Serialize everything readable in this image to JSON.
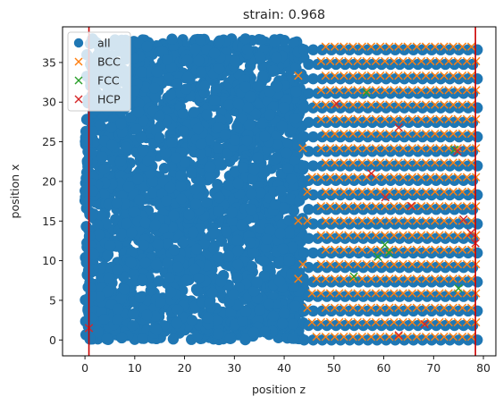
{
  "chart_data": {
    "type": "scatter",
    "title": "strain: 0.968",
    "xlabel": "position z",
    "ylabel": "position x",
    "xlim": [
      -4.5,
      82.5
    ],
    "ylim": [
      -2,
      39.5
    ],
    "xticks": [
      0,
      10,
      20,
      30,
      40,
      50,
      60,
      70,
      80
    ],
    "yticks": [
      0,
      5,
      10,
      15,
      20,
      25,
      30,
      35
    ],
    "grid": false,
    "legend_position": "top-left",
    "vlines": [
      {
        "x": 0.8,
        "color": "#cc0000"
      },
      {
        "x": 78.4,
        "color": "#cc0000"
      }
    ],
    "series": [
      {
        "name": "all",
        "marker": "circle",
        "color": "#1f77b4",
        "lattice": {
          "amorphous_x_range": [
            0,
            44
          ],
          "crystal_x_range": [
            44,
            79
          ],
          "y_range": [
            0,
            38
          ],
          "crystal_x_spacing": 1.83,
          "crystal_y_spacing": 1.83
        }
      },
      {
        "name": "BCC",
        "marker": "x",
        "color": "#ff7f0e",
        "lattice": {
          "x_range": [
            41,
            79
          ],
          "y_range": [
            0,
            37
          ],
          "x_spacing": 1.83,
          "y_spacing": 1.83
        }
      },
      {
        "name": "FCC",
        "marker": "x",
        "color": "#2ca02c",
        "points": [
          [
            56.5,
            31.2
          ],
          [
            60.2,
            12.0
          ],
          [
            58.8,
            10.5
          ],
          [
            54.0,
            8.0
          ],
          [
            75.0,
            6.5
          ],
          [
            74.2,
            24.0
          ],
          [
            61.0,
            11.0
          ]
        ]
      },
      {
        "name": "HCP",
        "marker": "x",
        "color": "#d62728",
        "points": [
          [
            0.8,
            1.5
          ],
          [
            50.5,
            29.8
          ],
          [
            63.0,
            26.8
          ],
          [
            57.5,
            21.0
          ],
          [
            60.3,
            18.0
          ],
          [
            65.5,
            16.9
          ],
          [
            76.0,
            15.2
          ],
          [
            78.4,
            12.2
          ],
          [
            63.0,
            0.6
          ],
          [
            68.2,
            2.0
          ],
          [
            74.8,
            23.8
          ],
          [
            77.5,
            13.5
          ]
        ]
      }
    ]
  }
}
